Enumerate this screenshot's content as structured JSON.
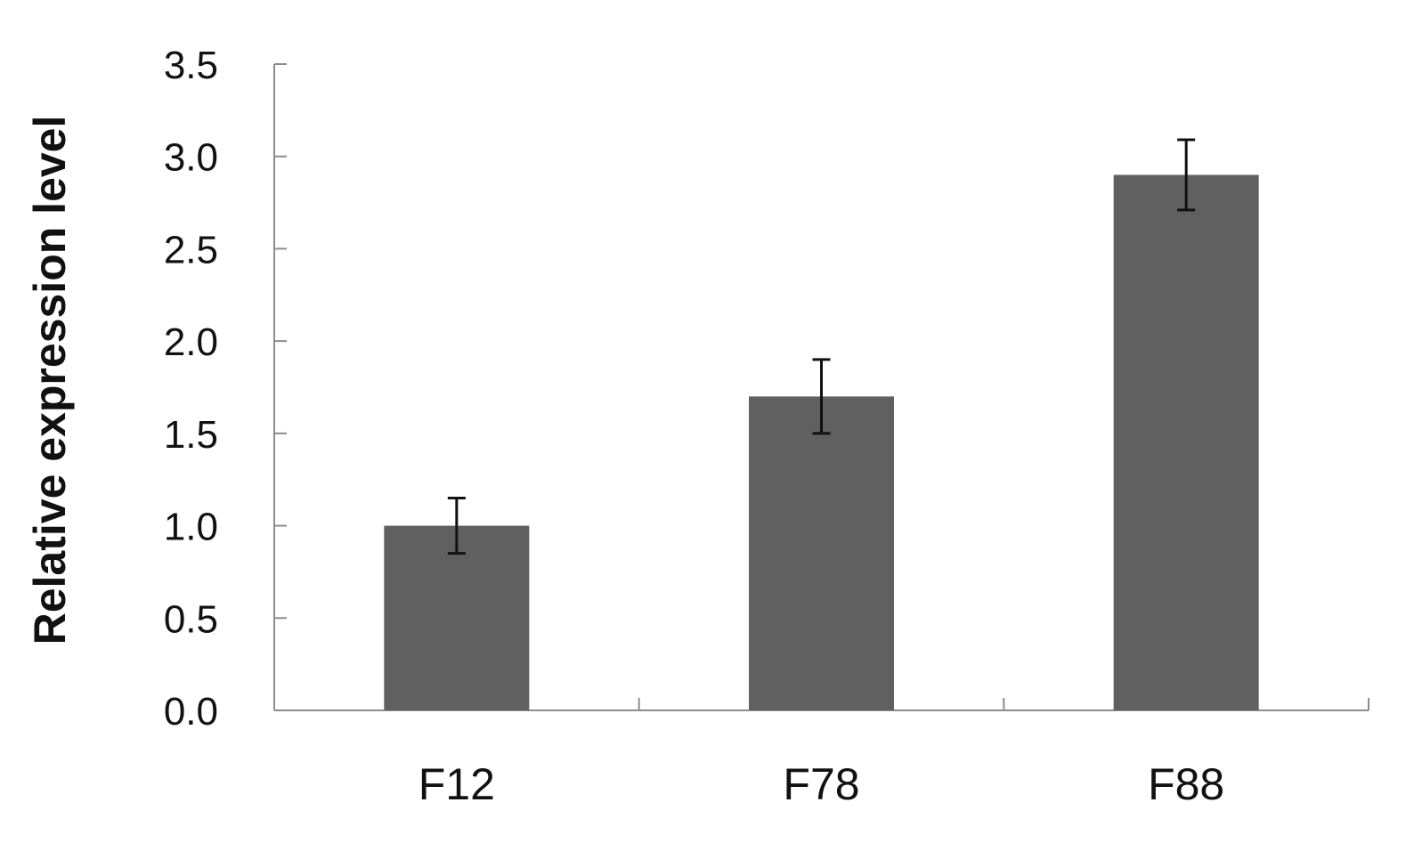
{
  "chart_data": {
    "type": "bar",
    "title": "",
    "xlabel": "",
    "ylabel": "Relative expression level",
    "categories": [
      "F12",
      "F78",
      "F88"
    ],
    "values": [
      1.0,
      1.7,
      2.9
    ],
    "error": [
      0.15,
      0.2,
      0.19
    ],
    "ylim": [
      0,
      3.5
    ],
    "yticks": [
      "0.0",
      "0.5",
      "1.0",
      "1.5",
      "2.0",
      "2.5",
      "3.0",
      "3.5"
    ],
    "grid": false,
    "legend": "none",
    "bar_color": "#606060"
  }
}
